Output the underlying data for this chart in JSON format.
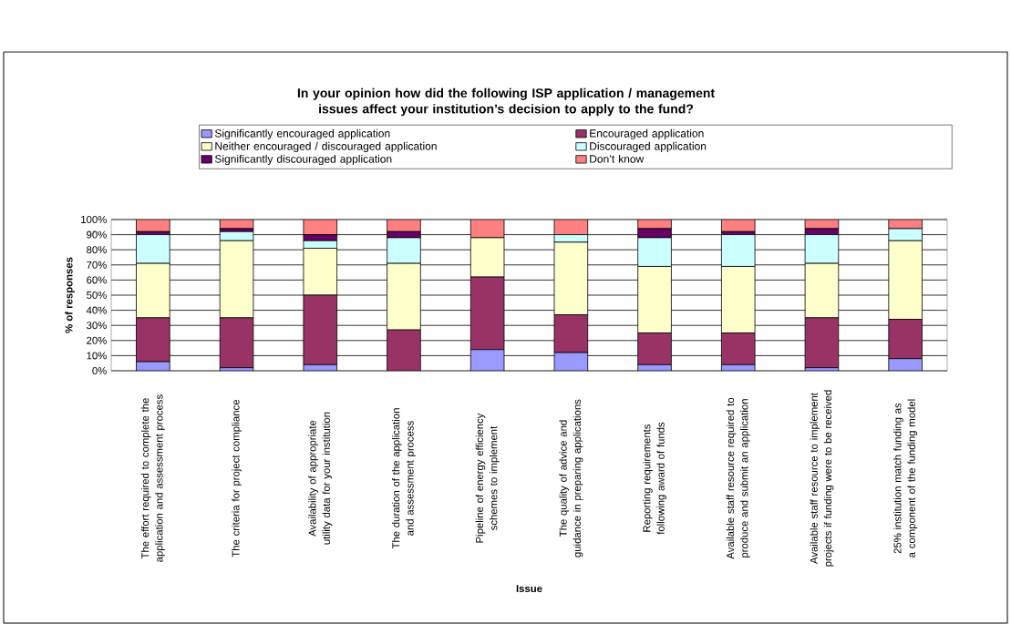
{
  "chart_data": {
    "type": "bar",
    "stacked": true,
    "title": "In your opinion how did the following ISP application / management issues affect your institution’s decision to apply to the fund?",
    "xlabel": "Issue",
    "ylabel": "% of responses",
    "categories": [
      "The effort required to complete the application and assessment process",
      "The criteria for project compliance",
      "Availability of appropriate utility data for your institution",
      "The duration of the application and assessment process",
      "Pipeline of energy efficiency schemes to implement",
      "The quality of advice and guidance in preparing applications",
      "Reporting requirements following award of funds",
      "Available staff resource required to produce and submit an application",
      "Available staff resource to implement projects if funding were to be received",
      "25% institution match funding as a component of the funding model"
    ],
    "series": [
      {
        "name": "Significantly encouraged application",
        "color": "#9999ff",
        "values": [
          6,
          2,
          4,
          0,
          14,
          12,
          4,
          4,
          2,
          8
        ]
      },
      {
        "name": "Encouraged application",
        "color": "#993366",
        "values": [
          29,
          33,
          46,
          27,
          48,
          25,
          21,
          21,
          33,
          26
        ]
      },
      {
        "name": "Neither encouraged / discouraged application",
        "color": "#ffffcc",
        "values": [
          36,
          51,
          31,
          44,
          26,
          48,
          44,
          44,
          36,
          52
        ]
      },
      {
        "name": "Discouraged application",
        "color": "#ccffff",
        "values": [
          19,
          6,
          5,
          17,
          0,
          5,
          19,
          21,
          19,
          8
        ]
      },
      {
        "name": "Significantly discouraged application",
        "color": "#660066",
        "values": [
          2,
          2,
          4,
          4,
          0,
          0,
          6,
          2,
          4,
          0
        ]
      },
      {
        "name": "Don’t know",
        "color": "#ff8080",
        "values": [
          8,
          6,
          10,
          8,
          12,
          10,
          6,
          8,
          6,
          6
        ]
      }
    ],
    "ylim": [
      0,
      100
    ],
    "yticks": [
      {
        "value": 0,
        "label": "0%"
      },
      {
        "value": 10,
        "label": "10%"
      },
      {
        "value": 20,
        "label": "20%"
      },
      {
        "value": 30,
        "label": "30%"
      },
      {
        "value": 40,
        "label": "40%"
      },
      {
        "value": 50,
        "label": "50%"
      },
      {
        "value": 60,
        "label": "60%"
      },
      {
        "value": 70,
        "label": "70%"
      },
      {
        "value": 80,
        "label": "80%"
      },
      {
        "value": 90,
        "label": "90%"
      },
      {
        "value": 100,
        "label": "100%"
      }
    ],
    "grid": "y",
    "legend": "top"
  }
}
